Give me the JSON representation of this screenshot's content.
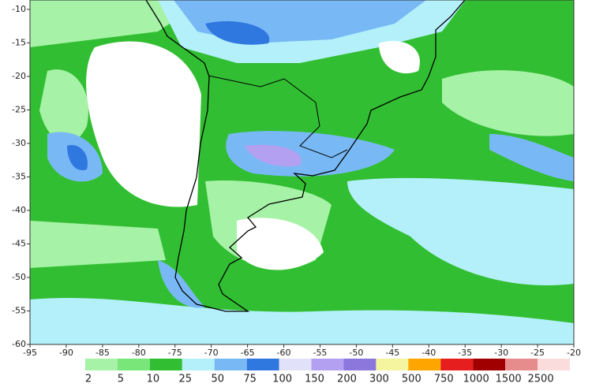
{
  "map": {
    "xlim": [
      -95,
      -20
    ],
    "ylim": [
      -60,
      -8.6
    ],
    "xticks": [
      -95,
      -90,
      -85,
      -80,
      -75,
      -70,
      -65,
      -60,
      -55,
      -50,
      -45,
      -40,
      -35,
      -30,
      -25,
      -20
    ],
    "yticks": [
      -10,
      -15,
      -20,
      -25,
      -30,
      -35,
      -40,
      -45,
      -50,
      -55,
      -60
    ],
    "colorbar": {
      "levels": [
        2,
        5,
        10,
        25,
        50,
        75,
        100,
        150,
        200,
        300,
        500,
        750,
        1000,
        1500,
        2500
      ],
      "colors": [
        "#a6f2a6",
        "#78e678",
        "#32be32",
        "#b4f0fa",
        "#78b9f5",
        "#2f78e0",
        "#e1e1fa",
        "#b4a0f0",
        "#8c78dc",
        "#f5f5a0",
        "#ffa500",
        "#e61e1e",
        "#a00000",
        "#e68c8c",
        "#fadcdc"
      ]
    }
  }
}
